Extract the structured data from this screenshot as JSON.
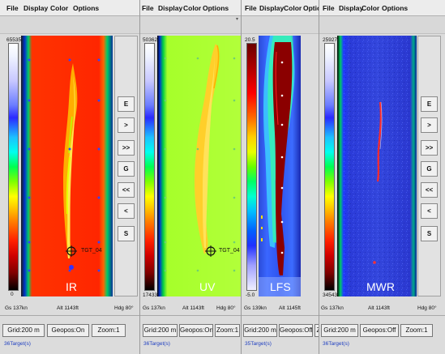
{
  "menu": [
    "File",
    "Display",
    "Color",
    "Options"
  ],
  "nav_buttons": [
    "E",
    ">",
    ">>",
    "G",
    "<<",
    "<",
    "S"
  ],
  "panes": [
    {
      "channel": "IR",
      "colorbar": {
        "max": "65535",
        "min": "0"
      },
      "target_label": "TGT_04",
      "status": {
        "speed": "Gs 137kn",
        "alt": "Alt 1143ft",
        "hdg": "Hdg 80°"
      },
      "buttons": [
        "Grid:200 m",
        "Geopos:On",
        "Zoom:1"
      ],
      "targets": "36Target(s)"
    },
    {
      "channel": "UV",
      "colorbar": {
        "max": "50362",
        "min": "17433"
      },
      "target_label": "TGT_04",
      "status": {
        "speed": "Gs 137kn",
        "alt": "Alt 1143ft",
        "hdg": "Hdg 80°"
      },
      "buttons": [
        "Grid:200 m",
        "Geopos:On",
        "Zoom:1"
      ],
      "targets": "36Target(s)"
    },
    {
      "channel": "LFS",
      "colorbar": {
        "max": "20.5",
        "min": "-5.0"
      },
      "status": {
        "speed": "Gs 139kn",
        "alt": "Alt 1145ft"
      },
      "buttons": [
        "Grid:200 m",
        "Geopos:Off",
        "Z"
      ],
      "targets": "35Target(s)"
    },
    {
      "channel": "MWR",
      "colorbar": {
        "max": "25927",
        "min": "34543"
      },
      "status": {
        "speed": "Gs 137kn",
        "alt": "Alt 1143ft",
        "hdg": "Hdg 80°"
      },
      "buttons": [
        "Grid:200 m",
        "Geopos:Off",
        "Zoom:1"
      ],
      "targets": "36Target(s)"
    }
  ]
}
